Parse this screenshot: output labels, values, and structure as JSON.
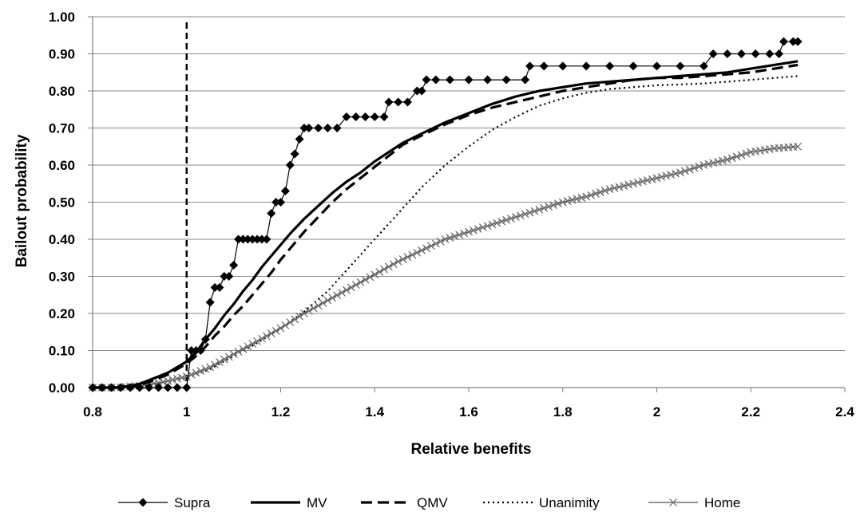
{
  "chart_data": {
    "type": "line",
    "xlabel": "Relative benefits",
    "ylabel": "Bailout probability",
    "xlim": [
      0.8,
      2.4
    ],
    "ylim": [
      0.0,
      1.0
    ],
    "x_ticks": [
      0.8,
      1,
      1.2,
      1.4,
      1.6,
      1.8,
      2,
      2.2,
      2.4
    ],
    "x_tick_labels": [
      "0.8",
      "1",
      "1.2",
      "1.4",
      "1.6",
      "1.8",
      "2",
      "2.2",
      "2.4"
    ],
    "y_ticks": [
      0,
      0.1,
      0.2,
      0.3,
      0.4,
      0.5,
      0.6,
      0.7,
      0.8,
      0.9,
      1.0
    ],
    "y_tick_labels": [
      "0.00",
      "0.10",
      "0.20",
      "0.30",
      "0.40",
      "0.50",
      "0.60",
      "0.70",
      "0.80",
      "0.90",
      "1.00"
    ],
    "grid": "horizontal",
    "legend_position": "bottom",
    "reference_line": {
      "x": 1.0,
      "style": "dashed"
    },
    "series": [
      {
        "name": "Supra",
        "style": "solid-thin",
        "marker": "diamond",
        "color": "#000000",
        "points": [
          [
            0.8,
            0
          ],
          [
            0.82,
            0
          ],
          [
            0.84,
            0
          ],
          [
            0.86,
            0
          ],
          [
            0.88,
            0
          ],
          [
            0.9,
            0
          ],
          [
            0.92,
            0
          ],
          [
            0.94,
            0
          ],
          [
            0.96,
            0
          ],
          [
            0.98,
            0
          ],
          [
            1.0,
            0
          ],
          [
            1.01,
            0.1
          ],
          [
            1.02,
            0.1
          ],
          [
            1.03,
            0.1
          ],
          [
            1.04,
            0.13
          ],
          [
            1.05,
            0.23
          ],
          [
            1.06,
            0.27
          ],
          [
            1.07,
            0.27
          ],
          [
            1.08,
            0.3
          ],
          [
            1.09,
            0.3
          ],
          [
            1.1,
            0.33
          ],
          [
            1.11,
            0.4
          ],
          [
            1.12,
            0.4
          ],
          [
            1.13,
            0.4
          ],
          [
            1.14,
            0.4
          ],
          [
            1.15,
            0.4
          ],
          [
            1.16,
            0.4
          ],
          [
            1.17,
            0.4
          ],
          [
            1.18,
            0.47
          ],
          [
            1.19,
            0.5
          ],
          [
            1.2,
            0.5
          ],
          [
            1.21,
            0.53
          ],
          [
            1.22,
            0.6
          ],
          [
            1.23,
            0.63
          ],
          [
            1.24,
            0.67
          ],
          [
            1.25,
            0.7
          ],
          [
            1.26,
            0.7
          ],
          [
            1.28,
            0.7
          ],
          [
            1.3,
            0.7
          ],
          [
            1.32,
            0.7
          ],
          [
            1.34,
            0.73
          ],
          [
            1.36,
            0.73
          ],
          [
            1.38,
            0.73
          ],
          [
            1.4,
            0.73
          ],
          [
            1.42,
            0.73
          ],
          [
            1.43,
            0.77
          ],
          [
            1.45,
            0.77
          ],
          [
            1.47,
            0.77
          ],
          [
            1.49,
            0.8
          ],
          [
            1.5,
            0.8
          ],
          [
            1.51,
            0.83
          ],
          [
            1.53,
            0.83
          ],
          [
            1.56,
            0.83
          ],
          [
            1.6,
            0.83
          ],
          [
            1.64,
            0.83
          ],
          [
            1.68,
            0.83
          ],
          [
            1.72,
            0.83
          ],
          [
            1.73,
            0.867
          ],
          [
            1.76,
            0.867
          ],
          [
            1.8,
            0.867
          ],
          [
            1.85,
            0.867
          ],
          [
            1.9,
            0.867
          ],
          [
            1.95,
            0.867
          ],
          [
            2.0,
            0.867
          ],
          [
            2.05,
            0.867
          ],
          [
            2.1,
            0.867
          ],
          [
            2.12,
            0.9
          ],
          [
            2.15,
            0.9
          ],
          [
            2.18,
            0.9
          ],
          [
            2.21,
            0.9
          ],
          [
            2.24,
            0.9
          ],
          [
            2.26,
            0.9
          ],
          [
            2.27,
            0.933
          ],
          [
            2.29,
            0.933
          ],
          [
            2.3,
            0.933
          ]
        ]
      },
      {
        "name": "MV",
        "style": "solid-thick",
        "marker": "none",
        "color": "#000000",
        "points": [
          [
            0.8,
            0
          ],
          [
            0.85,
            0
          ],
          [
            0.88,
            0.005
          ],
          [
            0.9,
            0.01
          ],
          [
            0.92,
            0.02
          ],
          [
            0.94,
            0.03
          ],
          [
            0.96,
            0.04
          ],
          [
            0.98,
            0.055
          ],
          [
            1.0,
            0.07
          ],
          [
            1.02,
            0.095
          ],
          [
            1.04,
            0.13
          ],
          [
            1.06,
            0.16
          ],
          [
            1.08,
            0.195
          ],
          [
            1.1,
            0.225
          ],
          [
            1.12,
            0.26
          ],
          [
            1.14,
            0.29
          ],
          [
            1.16,
            0.325
          ],
          [
            1.18,
            0.355
          ],
          [
            1.2,
            0.385
          ],
          [
            1.22,
            0.415
          ],
          [
            1.25,
            0.455
          ],
          [
            1.28,
            0.49
          ],
          [
            1.31,
            0.525
          ],
          [
            1.34,
            0.555
          ],
          [
            1.37,
            0.58
          ],
          [
            1.4,
            0.61
          ],
          [
            1.43,
            0.635
          ],
          [
            1.46,
            0.66
          ],
          [
            1.5,
            0.685
          ],
          [
            1.55,
            0.715
          ],
          [
            1.6,
            0.74
          ],
          [
            1.65,
            0.765
          ],
          [
            1.7,
            0.785
          ],
          [
            1.75,
            0.8
          ],
          [
            1.8,
            0.81
          ],
          [
            1.85,
            0.82
          ],
          [
            1.9,
            0.825
          ],
          [
            1.95,
            0.83
          ],
          [
            2.0,
            0.835
          ],
          [
            2.05,
            0.84
          ],
          [
            2.1,
            0.845
          ],
          [
            2.15,
            0.85
          ],
          [
            2.2,
            0.86
          ],
          [
            2.25,
            0.87
          ],
          [
            2.3,
            0.88
          ]
        ]
      },
      {
        "name": "QMV",
        "style": "dashed-thick",
        "marker": "none",
        "color": "#000000",
        "points": [
          [
            0.8,
            0
          ],
          [
            0.85,
            0
          ],
          [
            0.88,
            0.003
          ],
          [
            0.9,
            0.008
          ],
          [
            0.92,
            0.015
          ],
          [
            0.94,
            0.025
          ],
          [
            0.96,
            0.035
          ],
          [
            0.98,
            0.05
          ],
          [
            1.0,
            0.065
          ],
          [
            1.02,
            0.085
          ],
          [
            1.04,
            0.11
          ],
          [
            1.06,
            0.14
          ],
          [
            1.08,
            0.165
          ],
          [
            1.1,
            0.195
          ],
          [
            1.12,
            0.22
          ],
          [
            1.14,
            0.25
          ],
          [
            1.16,
            0.28
          ],
          [
            1.18,
            0.31
          ],
          [
            1.2,
            0.345
          ],
          [
            1.22,
            0.375
          ],
          [
            1.25,
            0.42
          ],
          [
            1.28,
            0.46
          ],
          [
            1.31,
            0.5
          ],
          [
            1.34,
            0.535
          ],
          [
            1.37,
            0.565
          ],
          [
            1.4,
            0.595
          ],
          [
            1.43,
            0.625
          ],
          [
            1.46,
            0.655
          ],
          [
            1.5,
            0.68
          ],
          [
            1.55,
            0.71
          ],
          [
            1.6,
            0.735
          ],
          [
            1.65,
            0.755
          ],
          [
            1.7,
            0.77
          ],
          [
            1.75,
            0.785
          ],
          [
            1.8,
            0.8
          ],
          [
            1.85,
            0.81
          ],
          [
            1.9,
            0.82
          ],
          [
            1.95,
            0.83
          ],
          [
            2.0,
            0.835
          ],
          [
            2.05,
            0.835
          ],
          [
            2.1,
            0.84
          ],
          [
            2.15,
            0.845
          ],
          [
            2.2,
            0.85
          ],
          [
            2.25,
            0.86
          ],
          [
            2.3,
            0.87
          ]
        ]
      },
      {
        "name": "Unanimity",
        "style": "dotted",
        "marker": "none",
        "color": "#000000",
        "points": [
          [
            0.8,
            0
          ],
          [
            0.85,
            0
          ],
          [
            0.9,
            0.003
          ],
          [
            0.95,
            0.01
          ],
          [
            1.0,
            0.025
          ],
          [
            1.05,
            0.05
          ],
          [
            1.1,
            0.085
          ],
          [
            1.15,
            0.12
          ],
          [
            1.2,
            0.16
          ],
          [
            1.25,
            0.205
          ],
          [
            1.3,
            0.26
          ],
          [
            1.35,
            0.33
          ],
          [
            1.4,
            0.4
          ],
          [
            1.45,
            0.47
          ],
          [
            1.5,
            0.54
          ],
          [
            1.55,
            0.6
          ],
          [
            1.6,
            0.65
          ],
          [
            1.65,
            0.695
          ],
          [
            1.7,
            0.73
          ],
          [
            1.75,
            0.76
          ],
          [
            1.8,
            0.78
          ],
          [
            1.85,
            0.795
          ],
          [
            1.9,
            0.805
          ],
          [
            1.95,
            0.81
          ],
          [
            2.0,
            0.815
          ],
          [
            2.1,
            0.82
          ],
          [
            2.2,
            0.83
          ],
          [
            2.3,
            0.84
          ]
        ]
      },
      {
        "name": "Home",
        "style": "solid-thin",
        "marker": "x",
        "color": "#000000",
        "points": [
          [
            0.8,
            0
          ],
          [
            0.85,
            0
          ],
          [
            0.9,
            0.005
          ],
          [
            0.95,
            0.015
          ],
          [
            1.0,
            0.03
          ],
          [
            1.05,
            0.055
          ],
          [
            1.1,
            0.09
          ],
          [
            1.15,
            0.125
          ],
          [
            1.2,
            0.16
          ],
          [
            1.25,
            0.2
          ],
          [
            1.3,
            0.235
          ],
          [
            1.35,
            0.27
          ],
          [
            1.4,
            0.305
          ],
          [
            1.45,
            0.34
          ],
          [
            1.5,
            0.37
          ],
          [
            1.55,
            0.4
          ],
          [
            1.6,
            0.42
          ],
          [
            1.65,
            0.44
          ],
          [
            1.7,
            0.46
          ],
          [
            1.75,
            0.48
          ],
          [
            1.8,
            0.5
          ],
          [
            1.85,
            0.515
          ],
          [
            1.9,
            0.535
          ],
          [
            1.95,
            0.55
          ],
          [
            2.0,
            0.565
          ],
          [
            2.05,
            0.58
          ],
          [
            2.1,
            0.6
          ],
          [
            2.15,
            0.615
          ],
          [
            2.2,
            0.635
          ],
          [
            2.25,
            0.645
          ],
          [
            2.3,
            0.65
          ]
        ]
      }
    ]
  }
}
